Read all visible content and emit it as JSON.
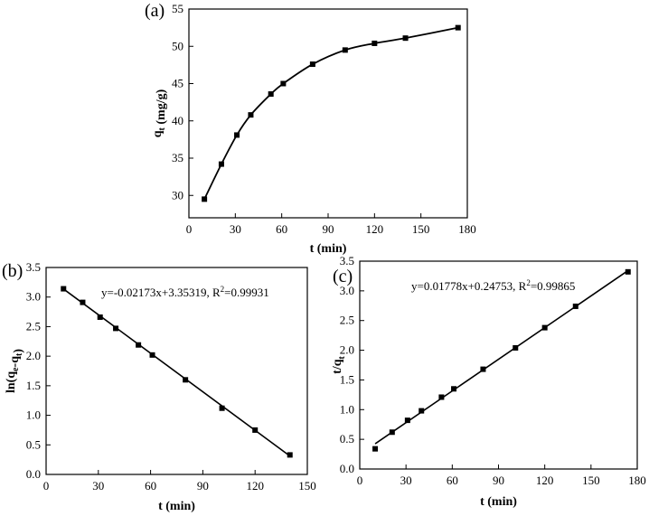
{
  "chart_data": [
    {
      "type": "scatter",
      "panel_label": "(a)",
      "xlabel": "t (min)",
      "ylabel_main": "q",
      "ylabel_sub": "t",
      "ylabel_rest": " (mg/g)",
      "xlim": [
        0,
        180
      ],
      "ylim": [
        27,
        55
      ],
      "xticks": [
        0,
        30,
        60,
        90,
        120,
        150,
        180
      ],
      "yticks": [
        30,
        35,
        40,
        45,
        50,
        55
      ],
      "fit": "curve",
      "points": [
        {
          "x": 10,
          "y": 29.5
        },
        {
          "x": 21,
          "y": 34.2
        },
        {
          "x": 31,
          "y": 38.1
        },
        {
          "x": 40,
          "y": 40.8
        },
        {
          "x": 53,
          "y": 43.6
        },
        {
          "x": 61,
          "y": 45.0
        },
        {
          "x": 80,
          "y": 47.6
        },
        {
          "x": 101,
          "y": 49.5
        },
        {
          "x": 120,
          "y": 50.4
        },
        {
          "x": 140,
          "y": 51.1
        },
        {
          "x": 174,
          "y": 52.5
        }
      ],
      "grid": false
    },
    {
      "type": "scatter",
      "panel_label": "(b)",
      "xlabel": "t (min)",
      "ylabel_main": "ln(q",
      "ylabel_sub": "e",
      "ylabel_mid": "-q",
      "ylabel_sub2": "t",
      "ylabel_rest": ")",
      "xlim": [
        0,
        150
      ],
      "ylim": [
        0,
        3.5
      ],
      "xticks": [
        0,
        30,
        60,
        90,
        120,
        150
      ],
      "yticks": [
        0.0,
        0.5,
        1.0,
        1.5,
        2.0,
        2.5,
        3.0,
        3.5
      ],
      "fit": "linear",
      "fit_slope": -0.02173,
      "fit_intercept": 3.35319,
      "equation": "y=-0.02173x+3.35319, R",
      "r2_value": "=0.99931",
      "points": [
        {
          "x": 10,
          "y": 3.14
        },
        {
          "x": 21,
          "y": 2.91
        },
        {
          "x": 31,
          "y": 2.66
        },
        {
          "x": 40,
          "y": 2.47
        },
        {
          "x": 53,
          "y": 2.19
        },
        {
          "x": 61,
          "y": 2.02
        },
        {
          "x": 80,
          "y": 1.6
        },
        {
          "x": 101,
          "y": 1.12
        },
        {
          "x": 120,
          "y": 0.75
        },
        {
          "x": 140,
          "y": 0.33
        }
      ],
      "grid": false
    },
    {
      "type": "scatter",
      "panel_label": "(c)",
      "xlabel": "t (min)",
      "ylabel_main": "t/q",
      "ylabel_sub": "t",
      "ylabel_rest": "",
      "xlim": [
        0,
        180
      ],
      "ylim": [
        0,
        3.5
      ],
      "xticks": [
        0,
        30,
        60,
        90,
        120,
        150,
        180
      ],
      "yticks": [
        0.0,
        0.5,
        1.0,
        1.5,
        2.0,
        2.5,
        3.0,
        3.5
      ],
      "fit": "linear",
      "fit_slope": 0.01778,
      "fit_intercept": 0.24753,
      "equation": "y=0.01778x+0.24753, R",
      "r2_value": "=0.99865",
      "points": [
        {
          "x": 10,
          "y": 0.34
        },
        {
          "x": 21,
          "y": 0.62
        },
        {
          "x": 31,
          "y": 0.82
        },
        {
          "x": 40,
          "y": 0.98
        },
        {
          "x": 53,
          "y": 1.21
        },
        {
          "x": 61,
          "y": 1.35
        },
        {
          "x": 80,
          "y": 1.68
        },
        {
          "x": 101,
          "y": 2.04
        },
        {
          "x": 120,
          "y": 2.38
        },
        {
          "x": 140,
          "y": 2.74
        },
        {
          "x": 174,
          "y": 3.32
        }
      ],
      "grid": false
    }
  ]
}
